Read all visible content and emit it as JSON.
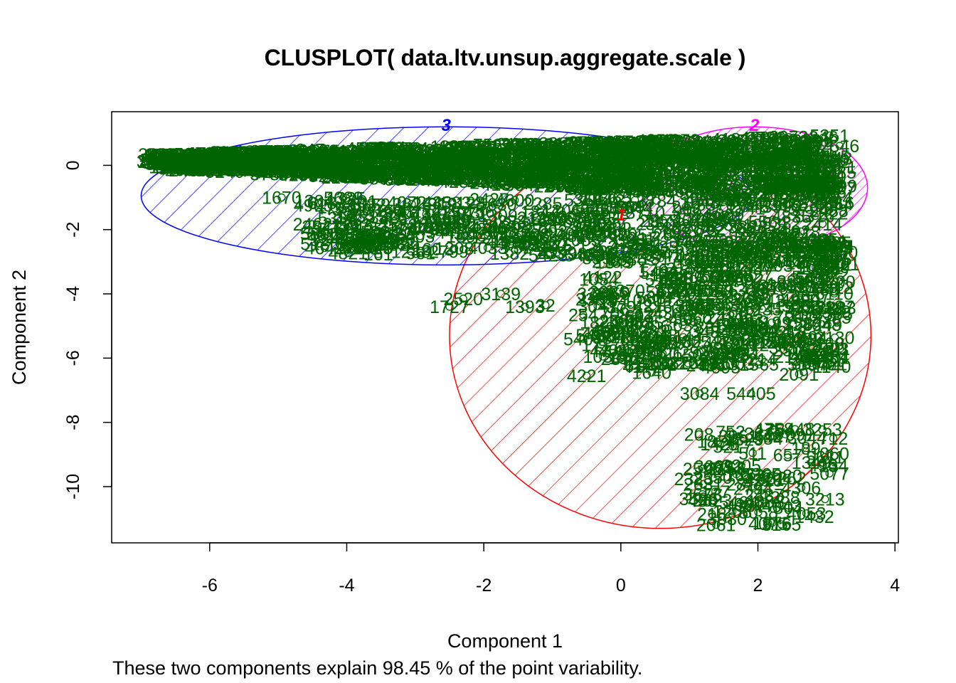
{
  "chart_data": {
    "type": "scatter",
    "title": "CLUSPLOT( data.ltv.unsup.aggregate.scale )",
    "xlabel": "Component 1",
    "ylabel": "Component 2",
    "subtitle": "These two components explain 98.45 % of the point variability.",
    "xlim": [
      -7.43,
      4.05
    ],
    "ylim": [
      -11.75,
      1.67
    ],
    "xticks": [
      -6,
      -4,
      -2,
      0,
      2,
      4
    ],
    "yticks": [
      0,
      -2,
      -4,
      -6,
      -8,
      -10
    ],
    "grid": false,
    "point_color": "#006400",
    "clusters": [
      {
        "id": "1",
        "color": "#ff0000",
        "center": [
          0.45,
          -4.15
        ],
        "ellipse_x_range": [
          -2.5,
          3.65
        ],
        "ellipse_y_range": [
          -11.3,
          0.7
        ]
      },
      {
        "id": "2",
        "color": "#ff00ff",
        "center": [
          2.2,
          -0.9
        ],
        "ellipse_x_range": [
          0.3,
          3.6
        ],
        "ellipse_y_range": [
          -2.6,
          1.2
        ]
      },
      {
        "id": "3",
        "color": "#0000ff",
        "center": [
          -2.1,
          -0.95
        ],
        "ellipse_x_range": [
          -7.0,
          1.9
        ],
        "ellipse_y_range": [
          -3.1,
          1.2
        ]
      }
    ],
    "labeled_points": [
      {
        "label": "1473",
        "x": -6.6,
        "y": -0.05
      },
      {
        "label": "1670",
        "x": -4.95,
        "y": -1.0
      },
      {
        "label": "54",
        "x": -3.9,
        "y": -1.45
      },
      {
        "label": "856",
        "x": -3.15,
        "y": -2.4
      },
      {
        "label": "2520",
        "x": -2.3,
        "y": -4.15
      },
      {
        "label": "1727",
        "x": -2.5,
        "y": -4.4
      },
      {
        "label": "3139",
        "x": -1.75,
        "y": -4.0
      },
      {
        "label": "1393",
        "x": -1.4,
        "y": -4.4
      },
      {
        "label": "32",
        "x": -1.1,
        "y": -4.35
      },
      {
        "label": "3288",
        "x": -0.35,
        "y": -4.0
      },
      {
        "label": "254",
        "x": -0.55,
        "y": -4.65
      },
      {
        "label": "5404",
        "x": -0.55,
        "y": -5.4
      },
      {
        "label": "4221",
        "x": -0.5,
        "y": -6.55
      },
      {
        "label": "1640",
        "x": 0.45,
        "y": -6.45
      },
      {
        "label": "3084",
        "x": 1.15,
        "y": -7.1
      },
      {
        "label": "54405",
        "x": 1.9,
        "y": -7.1
      },
      {
        "label": "2091",
        "x": 2.6,
        "y": -6.5
      },
      {
        "label": "752",
        "x": 1.6,
        "y": -8.3
      },
      {
        "label": "584",
        "x": 2.15,
        "y": -8.5
      },
      {
        "label": "189",
        "x": 2.7,
        "y": -8.8
      },
      {
        "label": "712",
        "x": 3.1,
        "y": -8.5
      },
      {
        "label": "134",
        "x": 3.1,
        "y": -9.35
      },
      {
        "label": "4043",
        "x": 2.35,
        "y": -10.6
      },
      {
        "label": "3030",
        "x": 1.55,
        "y": -11.0
      },
      {
        "label": "4075",
        "x": 2.15,
        "y": -11.15
      },
      {
        "label": "285",
        "x": 2.95,
        "y": -2.3
      },
      {
        "label": "437",
        "x": 2.0,
        "y": -3.2
      },
      {
        "label": "494",
        "x": 2.8,
        "y": -5.35
      },
      {
        "label": "01",
        "x": 3.2,
        "y": -5.7
      }
    ]
  }
}
